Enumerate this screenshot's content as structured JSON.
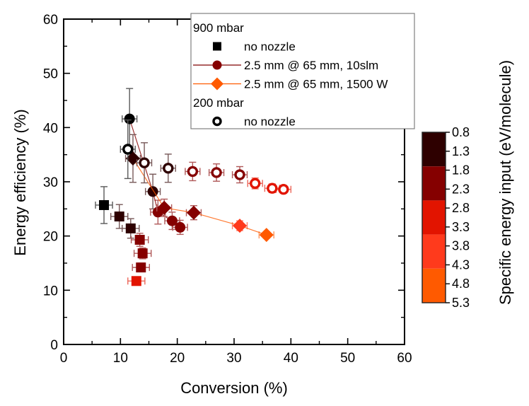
{
  "chart_data": {
    "type": "scatter",
    "title": "",
    "xlabel": "Conversion (%)",
    "ylabel": "Energy efficiency (%)",
    "xlim": [
      0,
      60
    ],
    "ylim": [
      0,
      60
    ],
    "xticks": [
      "0",
      "10",
      "20",
      "30",
      "40",
      "50",
      "60"
    ],
    "yticks": [
      "0",
      "10",
      "20",
      "30",
      "40",
      "50",
      "60"
    ],
    "grid": false,
    "legend": {
      "placement": "top-right",
      "groups": [
        {
          "heading": "900 mbar",
          "entries": [
            {
              "label": "no nozzle",
              "marker": "square-filled",
              "line": false,
              "color": "#000000"
            },
            {
              "label": "2.5 mm @ 65 mm, 10slm",
              "marker": "circle-filled",
              "line": true,
              "color": "#800000"
            },
            {
              "label": "2.5 mm @ 65 mm, 1500 W",
              "marker": "diamond-filled",
              "line": true,
              "color": "#ff5a00"
            }
          ]
        },
        {
          "heading": "200 mbar",
          "entries": [
            {
              "label": "no nozzle",
              "marker": "circle-open",
              "line": false,
              "color": "#000000"
            }
          ]
        }
      ]
    },
    "colorbar": {
      "label": "Specific energy input (eV/molecule)",
      "ticks": [
        "0.8",
        "1.3",
        "1.8",
        "2.3",
        "2.8",
        "3.3",
        "3.8",
        "4.3",
        "4.8",
        "5.3"
      ],
      "range": [
        0.8,
        5.3
      ],
      "bands": [
        {
          "from": 0.8,
          "to": 1.7,
          "color": "#2e0000"
        },
        {
          "from": 1.7,
          "to": 2.6,
          "color": "#850000"
        },
        {
          "from": 2.6,
          "to": 3.5,
          "color": "#e21400"
        },
        {
          "from": 3.5,
          "to": 4.4,
          "color": "#ff3a1c"
        },
        {
          "from": 4.4,
          "to": 5.3,
          "color": "#ff5a00"
        }
      ]
    },
    "series": [
      {
        "name": "900 mbar no nozzle",
        "marker": "square-filled",
        "line": false,
        "points": [
          {
            "x": 7.1,
            "y": 25.7,
            "xerr": 1.5,
            "yerr": 3.4,
            "color": "#000000"
          },
          {
            "x": 9.8,
            "y": 23.6,
            "xerr": 1.5,
            "yerr": 2.2,
            "color": "#2e0000"
          },
          {
            "x": 11.8,
            "y": 21.4,
            "xerr": 1.5,
            "yerr": 1.8,
            "color": "#2e0000"
          },
          {
            "x": 13.4,
            "y": 19.3,
            "xerr": 1.5,
            "yerr": 1.2,
            "color": "#850000"
          },
          {
            "x": 13.9,
            "y": 16.8,
            "xerr": 1.5,
            "yerr": 1.0,
            "color": "#850000"
          },
          {
            "x": 13.6,
            "y": 14.2,
            "xerr": 1.5,
            "yerr": 0.8,
            "color": "#850000"
          },
          {
            "x": 12.8,
            "y": 11.7,
            "xerr": 1.5,
            "yerr": 0.6,
            "color": "#e21400"
          }
        ]
      },
      {
        "name": "900 mbar 2.5 mm @ 65 mm, 10slm",
        "marker": "circle-filled",
        "line": true,
        "line_color": "#850000",
        "points": [
          {
            "x": 11.6,
            "y": 41.6,
            "xerr": 1.3,
            "yerr": 5.6,
            "color": "#000000"
          },
          {
            "x": 15.7,
            "y": 28.2,
            "xerr": 1.3,
            "yerr": 3.2,
            "color": "#2e0000"
          },
          {
            "x": 16.6,
            "y": 24.4,
            "xerr": 1.3,
            "yerr": 2.2,
            "color": "#850000"
          },
          {
            "x": 19.1,
            "y": 22.8,
            "xerr": 1.3,
            "yerr": 1.6,
            "color": "#850000"
          },
          {
            "x": 20.5,
            "y": 21.6,
            "xerr": 1.3,
            "yerr": 1.3,
            "color": "#850000"
          }
        ]
      },
      {
        "name": "900 mbar 2.5 mm @ 65 mm, 1500 W",
        "marker": "diamond-filled",
        "line": true,
        "line_color": "#ff5a00",
        "points": [
          {
            "x": 12.2,
            "y": 34.3,
            "xerr": 1.3,
            "yerr": 4.4,
            "color": "#2e0000"
          },
          {
            "x": 17.7,
            "y": 25.2,
            "xerr": 1.3,
            "yerr": 1.6,
            "color": "#850000"
          },
          {
            "x": 22.9,
            "y": 24.3,
            "xerr": 1.3,
            "yerr": 1.3,
            "color": "#850000"
          },
          {
            "x": 31.0,
            "y": 21.9,
            "xerr": 1.3,
            "yerr": 0.9,
            "color": "#ff3a1c"
          },
          {
            "x": 35.7,
            "y": 20.2,
            "xerr": 1.3,
            "yerr": 0.6,
            "color": "#ff5a00"
          }
        ]
      },
      {
        "name": "200 mbar no nozzle",
        "marker": "circle-open",
        "line": false,
        "points": [
          {
            "x": 11.3,
            "y": 36.0,
            "xerr": 1.3,
            "yerr": 5.4,
            "color": "#000000"
          },
          {
            "x": 14.2,
            "y": 33.5,
            "xerr": 1.3,
            "yerr": 3.7,
            "color": "#2e0000"
          },
          {
            "x": 18.4,
            "y": 32.5,
            "xerr": 1.3,
            "yerr": 2.6,
            "color": "#2e0000"
          },
          {
            "x": 22.7,
            "y": 31.9,
            "xerr": 1.3,
            "yerr": 1.7,
            "color": "#850000"
          },
          {
            "x": 26.9,
            "y": 31.7,
            "xerr": 1.3,
            "yerr": 1.6,
            "color": "#850000"
          },
          {
            "x": 31.0,
            "y": 31.3,
            "xerr": 1.3,
            "yerr": 1.5,
            "color": "#850000"
          },
          {
            "x": 33.7,
            "y": 29.7,
            "xerr": 1.3,
            "yerr": 1.0,
            "color": "#e21400"
          },
          {
            "x": 36.7,
            "y": 28.8,
            "xerr": 1.3,
            "yerr": 0.8,
            "color": "#e21400"
          },
          {
            "x": 38.7,
            "y": 28.6,
            "xerr": 1.3,
            "yerr": 0.7,
            "color": "#e21400"
          }
        ]
      }
    ]
  }
}
